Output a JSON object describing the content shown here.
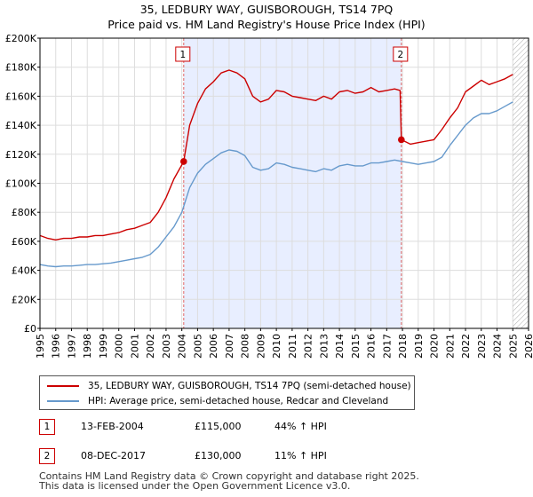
{
  "title_line1": "35, LEDBURY WAY, GUISBOROUGH, TS14 7PQ",
  "title_line2": "Price paid vs. HM Land Registry's House Price Index (HPI)",
  "colors": {
    "property": "#cc0000",
    "hpi": "#6699cc",
    "shade": "#e8eeff",
    "future_hatch": "#999999",
    "vline": "#e06666"
  },
  "chart_data": {
    "type": "line",
    "title": "35, LEDBURY WAY, GUISBOROUGH, TS14 7PQ",
    "subtitle": "Price paid vs. HM Land Registry's House Price Index (HPI)",
    "xlabel": "",
    "ylabel": "",
    "xlim": [
      1995,
      2026
    ],
    "ylim": [
      0,
      200000
    ],
    "grid": true,
    "x_ticks": [
      "1995",
      "1996",
      "1997",
      "1998",
      "1999",
      "2000",
      "2001",
      "2002",
      "2003",
      "2004",
      "2005",
      "2006",
      "2007",
      "2008",
      "2009",
      "2010",
      "2011",
      "2012",
      "2013",
      "2014",
      "2015",
      "2016",
      "2017",
      "2018",
      "2019",
      "2020",
      "2021",
      "2022",
      "2023",
      "2024",
      "2025",
      "2026"
    ],
    "y_ticks": [
      {
        "value": 0,
        "label": "£0"
      },
      {
        "value": 20000,
        "label": "£20K"
      },
      {
        "value": 40000,
        "label": "£40K"
      },
      {
        "value": 60000,
        "label": "£60K"
      },
      {
        "value": 80000,
        "label": "£80K"
      },
      {
        "value": 100000,
        "label": "£100K"
      },
      {
        "value": 120000,
        "label": "£120K"
      },
      {
        "value": 140000,
        "label": "£140K"
      },
      {
        "value": 160000,
        "label": "£160K"
      },
      {
        "value": 180000,
        "label": "£180K"
      },
      {
        "value": 200000,
        "label": "£200K"
      }
    ],
    "shaded_range": [
      2004.12,
      2017.93
    ],
    "future_from": 2025.0,
    "series": [
      {
        "name": "35, LEDBURY WAY, GUISBOROUGH, TS14 7PQ (semi-detached house)",
        "color": "#cc0000",
        "x": [
          1995.0,
          1995.5,
          1996.0,
          1996.5,
          1997.0,
          1997.5,
          1998.0,
          1998.5,
          1999.0,
          1999.5,
          2000.0,
          2000.5,
          2001.0,
          2001.5,
          2002.0,
          2002.5,
          2003.0,
          2003.5,
          2004.12,
          2004.5,
          2005.0,
          2005.5,
          2006.0,
          2006.5,
          2007.0,
          2007.5,
          2008.0,
          2008.5,
          2009.0,
          2009.5,
          2010.0,
          2010.5,
          2011.0,
          2011.5,
          2012.0,
          2012.5,
          2013.0,
          2013.5,
          2014.0,
          2014.5,
          2015.0,
          2015.5,
          2016.0,
          2016.5,
          2017.0,
          2017.5,
          2017.85,
          2017.93,
          2018.5,
          2019.0,
          2019.5,
          2020.0,
          2020.5,
          2021.0,
          2021.5,
          2022.0,
          2022.5,
          2023.0,
          2023.5,
          2024.0,
          2024.5,
          2025.0
        ],
        "values": [
          64000,
          62000,
          61000,
          62000,
          62000,
          63000,
          63000,
          64000,
          64000,
          65000,
          66000,
          68000,
          69000,
          71000,
          73000,
          80000,
          90000,
          103000,
          115000,
          140000,
          155000,
          165000,
          170000,
          176000,
          178000,
          176000,
          172000,
          160000,
          156000,
          158000,
          164000,
          163000,
          160000,
          159000,
          158000,
          157000,
          160000,
          158000,
          163000,
          164000,
          162000,
          163000,
          166000,
          163000,
          164000,
          165000,
          164000,
          130000,
          127000,
          128000,
          129000,
          130000,
          137000,
          145000,
          152000,
          163000,
          167000,
          171000,
          168000,
          170000,
          172000,
          175000
        ]
      },
      {
        "name": "HPI: Average price, semi-detached house, Redcar and Cleveland",
        "color": "#6699cc",
        "x": [
          1995.0,
          1995.5,
          1996.0,
          1996.5,
          1997.0,
          1997.5,
          1998.0,
          1998.5,
          1999.0,
          1999.5,
          2000.0,
          2000.5,
          2001.0,
          2001.5,
          2002.0,
          2002.5,
          2003.0,
          2003.5,
          2004.0,
          2004.5,
          2005.0,
          2005.5,
          2006.0,
          2006.5,
          2007.0,
          2007.5,
          2008.0,
          2008.5,
          2009.0,
          2009.5,
          2010.0,
          2010.5,
          2011.0,
          2011.5,
          2012.0,
          2012.5,
          2013.0,
          2013.5,
          2014.0,
          2014.5,
          2015.0,
          2015.5,
          2016.0,
          2016.5,
          2017.0,
          2017.5,
          2018.0,
          2018.5,
          2019.0,
          2019.5,
          2020.0,
          2020.5,
          2021.0,
          2021.5,
          2022.0,
          2022.5,
          2023.0,
          2023.5,
          2024.0,
          2024.5,
          2025.0
        ],
        "values": [
          44000,
          43000,
          42500,
          43000,
          43000,
          43500,
          44000,
          44000,
          44500,
          45000,
          46000,
          47000,
          48000,
          49000,
          51000,
          56000,
          63000,
          70000,
          80000,
          97000,
          107000,
          113000,
          117000,
          121000,
          123000,
          122000,
          119000,
          111000,
          109000,
          110000,
          114000,
          113000,
          111000,
          110000,
          109000,
          108000,
          110000,
          109000,
          112000,
          113000,
          112000,
          112000,
          114000,
          114000,
          115000,
          116000,
          115000,
          114000,
          113000,
          114000,
          115000,
          118000,
          126000,
          133000,
          140000,
          145000,
          148000,
          148000,
          150000,
          153000,
          156000
        ]
      }
    ],
    "markers": [
      {
        "label": "1",
        "x": 2004.12,
        "y": 115000
      },
      {
        "label": "2",
        "x": 2017.93,
        "y": 130000
      }
    ]
  },
  "legend": {
    "property_label": "35, LEDBURY WAY, GUISBOROUGH, TS14 7PQ (semi-detached house)",
    "hpi_label": "HPI: Average price, semi-detached house, Redcar and Cleveland"
  },
  "transactions": [
    {
      "num": "1",
      "date": "13-FEB-2004",
      "price": "£115,000",
      "hpi": "44% ↑ HPI"
    },
    {
      "num": "2",
      "date": "08-DEC-2017",
      "price": "£130,000",
      "hpi": "11% ↑ HPI"
    }
  ],
  "footer_line1": "Contains HM Land Registry data © Crown copyright and database right 2025.",
  "footer_line2": "This data is licensed under the Open Government Licence v3.0."
}
